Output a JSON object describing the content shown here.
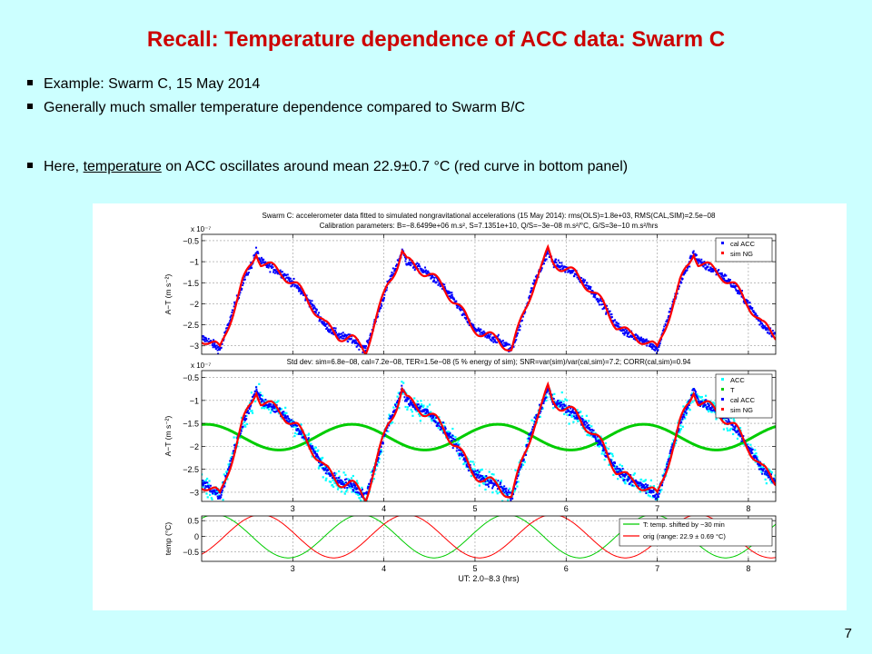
{
  "slide": {
    "title": "Recall: Temperature dependence of ACC data: Swarm C",
    "bullets": [
      "Example: Swarm C, 15 May 2014",
      "Generally much smaller temperature dependence compared to Swarm B/C"
    ],
    "bullet3": {
      "pre": "Here, ",
      "underlined": "temperature",
      "post": " on ACC oscillates around mean 22.9±0.7 °C (red curve in bottom panel)"
    },
    "page_number": "7"
  },
  "chart_data": [
    {
      "type": "line",
      "title_lines": [
        "Swarm C: accelerometer data fitted to simulated nongravitational accelerations (15 May 2014): rms(OLS)=1.8e+03, RMS(CAL,SIM)=2.5e−08",
        "Calibration parameters: B=−8.6499e+06 m.s², S=7.1351e+10, Q/S=−3e−08 m.s²/°C, G/S=3e−10 m.s²/hrs"
      ],
      "ylabel": "A−T (m s⁻²)",
      "exponent": "x 10⁻⁷",
      "xlim": [
        2.0,
        8.3
      ],
      "ylim": [
        -3.2,
        -0.35
      ],
      "yticks": [
        -0.5,
        -1,
        -1.5,
        -2,
        -2.5,
        -3
      ],
      "ytick_labels": [
        "−0.5",
        "−1",
        "−1.5",
        "−2",
        "−2.5",
        "−3"
      ],
      "legend": [
        "cal ACC",
        "sim NG"
      ],
      "legend_position": "top-right",
      "grid": true
    },
    {
      "type": "line",
      "title_lines": [
        "Std dev: sim=6.8e−08, cal=7.2e−08, TER=1.5e−08 (5 % energy of sim); SNR=var(sim)/var(cal,sim)=7.2; CORR(cal,sim)=0.94"
      ],
      "ylabel": "A−T (m s⁻²)",
      "exponent": "x 10⁻⁷",
      "xlim": [
        2.0,
        8.3
      ],
      "ylim": [
        -3.2,
        -0.35
      ],
      "xticks": [
        3,
        4,
        5,
        6,
        7,
        8
      ],
      "yticks": [
        -0.5,
        -1,
        -1.5,
        -2,
        -2.5,
        -3
      ],
      "ytick_labels": [
        "−0.5",
        "−1",
        "−1.5",
        "−2",
        "−2.5",
        "−3"
      ],
      "legend": [
        "ACC",
        "T",
        "cal ACC",
        "sim NG"
      ],
      "legend_position": "top-right",
      "grid": true
    },
    {
      "type": "line",
      "ylabel": "temp (°C)",
      "xlabel": "UT: 2.0−8.3 (hrs)",
      "xlim": [
        2.0,
        8.3
      ],
      "ylim": [
        -0.8,
        0.65
      ],
      "xticks": [
        3,
        4,
        5,
        6,
        7,
        8
      ],
      "yticks": [
        0.5,
        0,
        -0.5
      ],
      "ytick_labels": [
        "0.5",
        "0",
        "−0.5"
      ],
      "legend": [
        "T: temp. shifted by −30 min",
        "orig (range: 22.9 ± 0.69 °C)"
      ],
      "legend_position": "top-right",
      "series": [
        {
          "name": "T: temp. shifted by −30 min",
          "amplitude": 0.69,
          "period_hours": 1.6,
          "peak_hours": [
            2.15,
            3.75,
            5.35,
            6.95
          ]
        },
        {
          "name": "orig (range: 22.9 ± 0.69 °C)",
          "amplitude": 0.69,
          "period_hours": 1.6,
          "peak_hours": [
            2.65,
            4.25,
            5.85,
            7.45
          ]
        }
      ],
      "grid": true
    }
  ],
  "colors": {
    "cal_acc": "#0000ff",
    "sim_ng": "#ff0000",
    "acc": "#00ffff",
    "temp_green": "#00cc00",
    "title_red": "#cc0000"
  }
}
